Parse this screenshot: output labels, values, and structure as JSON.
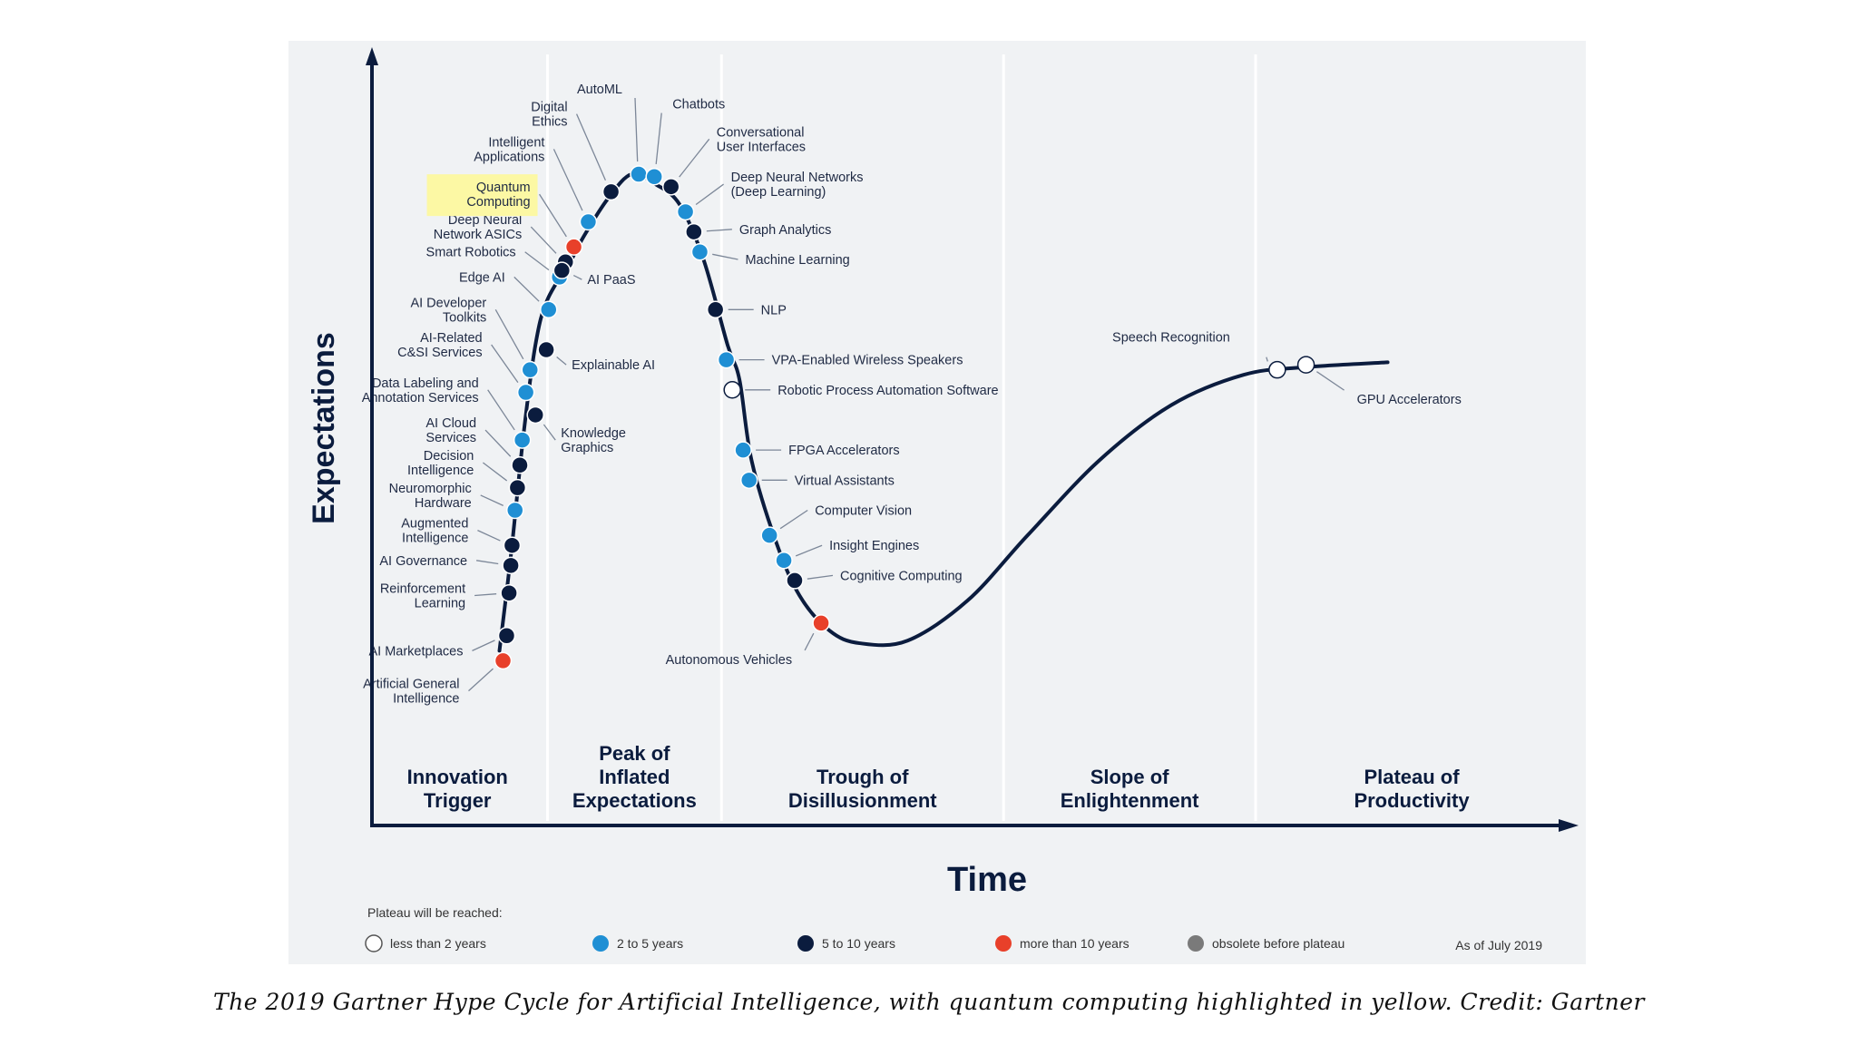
{
  "chart_data": {
    "type": "line",
    "title": "Hype Cycle for Artificial Intelligence, 2019",
    "xlabel": "Time",
    "ylabel": "Expectations",
    "xlim": [
      0,
      100
    ],
    "ylim": [
      0,
      100
    ],
    "phases": [
      {
        "name": "Innovation Trigger",
        "lines": [
          "Innovation",
          "Trigger"
        ],
        "start": 0,
        "end": 15
      },
      {
        "name": "Peak of Inflated Expectations",
        "lines": [
          "Peak of",
          "Inflated",
          "Expectations"
        ],
        "start": 15,
        "end": 29.5
      },
      {
        "name": "Trough of Disillusionment",
        "lines": [
          "Trough of",
          "Disillusionment"
        ],
        "start": 29.5,
        "end": 53
      },
      {
        "name": "Slope of Enlightenment",
        "lines": [
          "Slope of",
          "Enlightenment"
        ],
        "start": 53,
        "end": 74
      },
      {
        "name": "Plateau of Productivity",
        "lines": [
          "Plateau of",
          "Productivity"
        ],
        "start": 74,
        "end": 100
      }
    ],
    "curve": [
      [
        11,
        5
      ],
      [
        12,
        25
      ],
      [
        13,
        48
      ],
      [
        14,
        66
      ],
      [
        15,
        75
      ],
      [
        17,
        83
      ],
      [
        18,
        87.5
      ],
      [
        20,
        95
      ],
      [
        22,
        100
      ],
      [
        24,
        98
      ],
      [
        26,
        94
      ],
      [
        28,
        83
      ],
      [
        30,
        66
      ],
      [
        31,
        59
      ],
      [
        32,
        43
      ],
      [
        34,
        27
      ],
      [
        36,
        16
      ],
      [
        38.5,
        9
      ],
      [
        41,
        6.5
      ],
      [
        45,
        7
      ],
      [
        50,
        15
      ],
      [
        55,
        28
      ],
      [
        61,
        43
      ],
      [
        67,
        54
      ],
      [
        73,
        60
      ],
      [
        78,
        61.5
      ],
      [
        85,
        62.5
      ]
    ],
    "legend_title": "Plateau will be reached:",
    "legend": [
      {
        "key": "lt2",
        "label": "less than 2 years",
        "color": "#ffffff"
      },
      {
        "key": "2to5",
        "label": "2 to 5 years",
        "color": "#1f8fd4"
      },
      {
        "key": "5to10",
        "label": "5 to 10 years",
        "color": "#0b1c3e"
      },
      {
        "key": "gt10",
        "label": "more than 10 years",
        "color": "#e8402a"
      },
      {
        "key": "obs",
        "label": "obsolete before plateau",
        "color": "#7a7a7a"
      }
    ],
    "as_of": "As of July 2019",
    "highlight": "Quantum Computing",
    "technologies": [
      {
        "lines": [
          "Artificial General",
          "Intelligence"
        ],
        "x": 11.3,
        "y": 3,
        "cat": "gt10",
        "side": "left",
        "ty": -3
      },
      {
        "lines": [
          "AI Marketplaces"
        ],
        "x": 11.6,
        "y": 8,
        "cat": "5to10",
        "side": "left",
        "ty": 5
      },
      {
        "lines": [
          "Reinforcement",
          "Learning"
        ],
        "x": 11.8,
        "y": 16.5,
        "cat": "5to10",
        "side": "left",
        "ty": 16
      },
      {
        "lines": [
          "AI Governance"
        ],
        "x": 11.95,
        "y": 22,
        "cat": "5to10",
        "side": "left",
        "ty": 23
      },
      {
        "lines": [
          "Augmented",
          "Intelligence"
        ],
        "x": 12.05,
        "y": 26,
        "cat": "5to10",
        "side": "left",
        "ty": 29
      },
      {
        "lines": [
          "Neuromorphic",
          "Hardware"
        ],
        "x": 12.3,
        "y": 33,
        "cat": "2to5",
        "side": "left",
        "ty": 36
      },
      {
        "lines": [
          "Decision",
          "Intelligence"
        ],
        "x": 12.5,
        "y": 37.5,
        "cat": "5to10",
        "side": "left",
        "ty": 42.5
      },
      {
        "lines": [
          "AI Cloud",
          "Services"
        ],
        "x": 12.7,
        "y": 42,
        "cat": "5to10",
        "side": "left",
        "ty": 49
      },
      {
        "lines": [
          "Data Labeling and",
          "Annotation Services"
        ],
        "x": 12.9,
        "y": 47,
        "cat": "2to5",
        "side": "left",
        "ty": 57
      },
      {
        "lines": [
          "AI-Related",
          "C&SI Services"
        ],
        "x": 13.2,
        "y": 56.5,
        "cat": "2to5",
        "side": "left",
        "ty": 66
      },
      {
        "lines": [
          "AI Developer",
          "Toolkits"
        ],
        "x": 13.55,
        "y": 61,
        "cat": "2to5",
        "side": "left",
        "ty": 73
      },
      {
        "lines": [
          "Edge AI"
        ],
        "x": 15.1,
        "y": 73,
        "cat": "2to5",
        "side": "left",
        "ty": 79.5
      },
      {
        "lines": [
          "Smart Robotics"
        ],
        "x": 16.0,
        "y": 79.5,
        "cat": "2to5",
        "side": "left",
        "ty": 84.5
      },
      {
        "lines": [
          "Deep Neural",
          "Network ASICs"
        ],
        "x": 16.5,
        "y": 82.5,
        "cat": "5to10",
        "side": "left",
        "ty": 89.5
      },
      {
        "lines": [
          "Quantum",
          "Computing"
        ],
        "x": 17.2,
        "y": 85.5,
        "cat": "gt10",
        "side": "left",
        "ty": 96,
        "highlight": true
      },
      {
        "lines": [
          "Intelligent",
          "Applications"
        ],
        "x": 18.4,
        "y": 90.5,
        "cat": "2to5",
        "side": "left",
        "ty": 105
      },
      {
        "lines": [
          "Digital",
          "Ethics"
        ],
        "x": 20.3,
        "y": 96.5,
        "cat": "5to10",
        "side": "left",
        "ty": 112
      },
      {
        "lines": [
          "AutoML"
        ],
        "x": 22.6,
        "y": 100,
        "cat": "2to5",
        "side": "top",
        "ty": 117
      },
      {
        "lines": [
          "Chatbots"
        ],
        "x": 23.9,
        "y": 99.5,
        "cat": "2to5",
        "side": "top",
        "ty": 114
      },
      {
        "lines": [
          "Conversational",
          "User Interfaces"
        ],
        "x": 25.3,
        "y": 97.5,
        "cat": "5to10",
        "side": "right",
        "ty": 107
      },
      {
        "lines": [
          "Deep Neural Networks",
          "(Deep Learning)"
        ],
        "x": 26.5,
        "y": 92.5,
        "cat": "2to5",
        "side": "right",
        "ty": 98
      },
      {
        "lines": [
          "Graph Analytics"
        ],
        "x": 27.2,
        "y": 88.5,
        "cat": "5to10",
        "side": "right",
        "ty": 89
      },
      {
        "lines": [
          "Machine Learning"
        ],
        "x": 27.7,
        "y": 84.5,
        "cat": "2to5",
        "side": "right",
        "ty": 83
      },
      {
        "lines": [
          "AI PaaS"
        ],
        "x": 16.2,
        "y": 80.8,
        "cat": "5to10",
        "side": "rightlow",
        "ty": 79
      },
      {
        "lines": [
          "Explainable AI"
        ],
        "x": 14.9,
        "y": 65,
        "cat": "5to10",
        "side": "rightlow",
        "ty": 62
      },
      {
        "lines": [
          "Knowledge",
          "Graphics"
        ],
        "x": 14.0,
        "y": 52,
        "cat": "5to10",
        "side": "rightlow",
        "ty": 47
      },
      {
        "lines": [
          "NLP"
        ],
        "x": 29.0,
        "y": 73,
        "cat": "5to10",
        "side": "right",
        "ty": 73
      },
      {
        "lines": [
          "VPA-Enabled Wireless Speakers"
        ],
        "x": 29.9,
        "y": 63,
        "cat": "2to5",
        "side": "right",
        "ty": 63
      },
      {
        "lines": [
          "Robotic Process Automation Software"
        ],
        "x": 30.4,
        "y": 57,
        "cat": "lt2",
        "side": "right",
        "ty": 57
      },
      {
        "lines": [
          "FPGA Accelerators"
        ],
        "x": 31.3,
        "y": 45,
        "cat": "2to5",
        "side": "right",
        "ty": 45
      },
      {
        "lines": [
          "Virtual Assistants"
        ],
        "x": 31.8,
        "y": 39,
        "cat": "2to5",
        "side": "right",
        "ty": 39
      },
      {
        "lines": [
          "Computer Vision"
        ],
        "x": 33.5,
        "y": 28,
        "cat": "2to5",
        "side": "right",
        "ty": 33
      },
      {
        "lines": [
          "Insight Engines"
        ],
        "x": 34.7,
        "y": 23,
        "cat": "2to5",
        "side": "right",
        "ty": 26
      },
      {
        "lines": [
          "Cognitive Computing"
        ],
        "x": 35.6,
        "y": 19,
        "cat": "5to10",
        "side": "right",
        "ty": 20
      },
      {
        "lines": [
          "Autonomous Vehicles"
        ],
        "x": 37.8,
        "y": 10.5,
        "cat": "gt10",
        "side": "bottom",
        "ty": 0
      },
      {
        "lines": [
          "Speech Recognition"
        ],
        "x": 75.8,
        "y": 61,
        "cat": "lt2",
        "side": "uplabel",
        "ty": 64
      },
      {
        "lines": [
          "GPU Accelerators"
        ],
        "x": 78.2,
        "y": 62,
        "cat": "lt2",
        "side": "downlabel",
        "ty": 56
      }
    ]
  },
  "caption": "The 2019 Gartner Hype Cycle for Artificial Intelligence, with quantum computing highlighted in yellow. Credit: Gartner"
}
